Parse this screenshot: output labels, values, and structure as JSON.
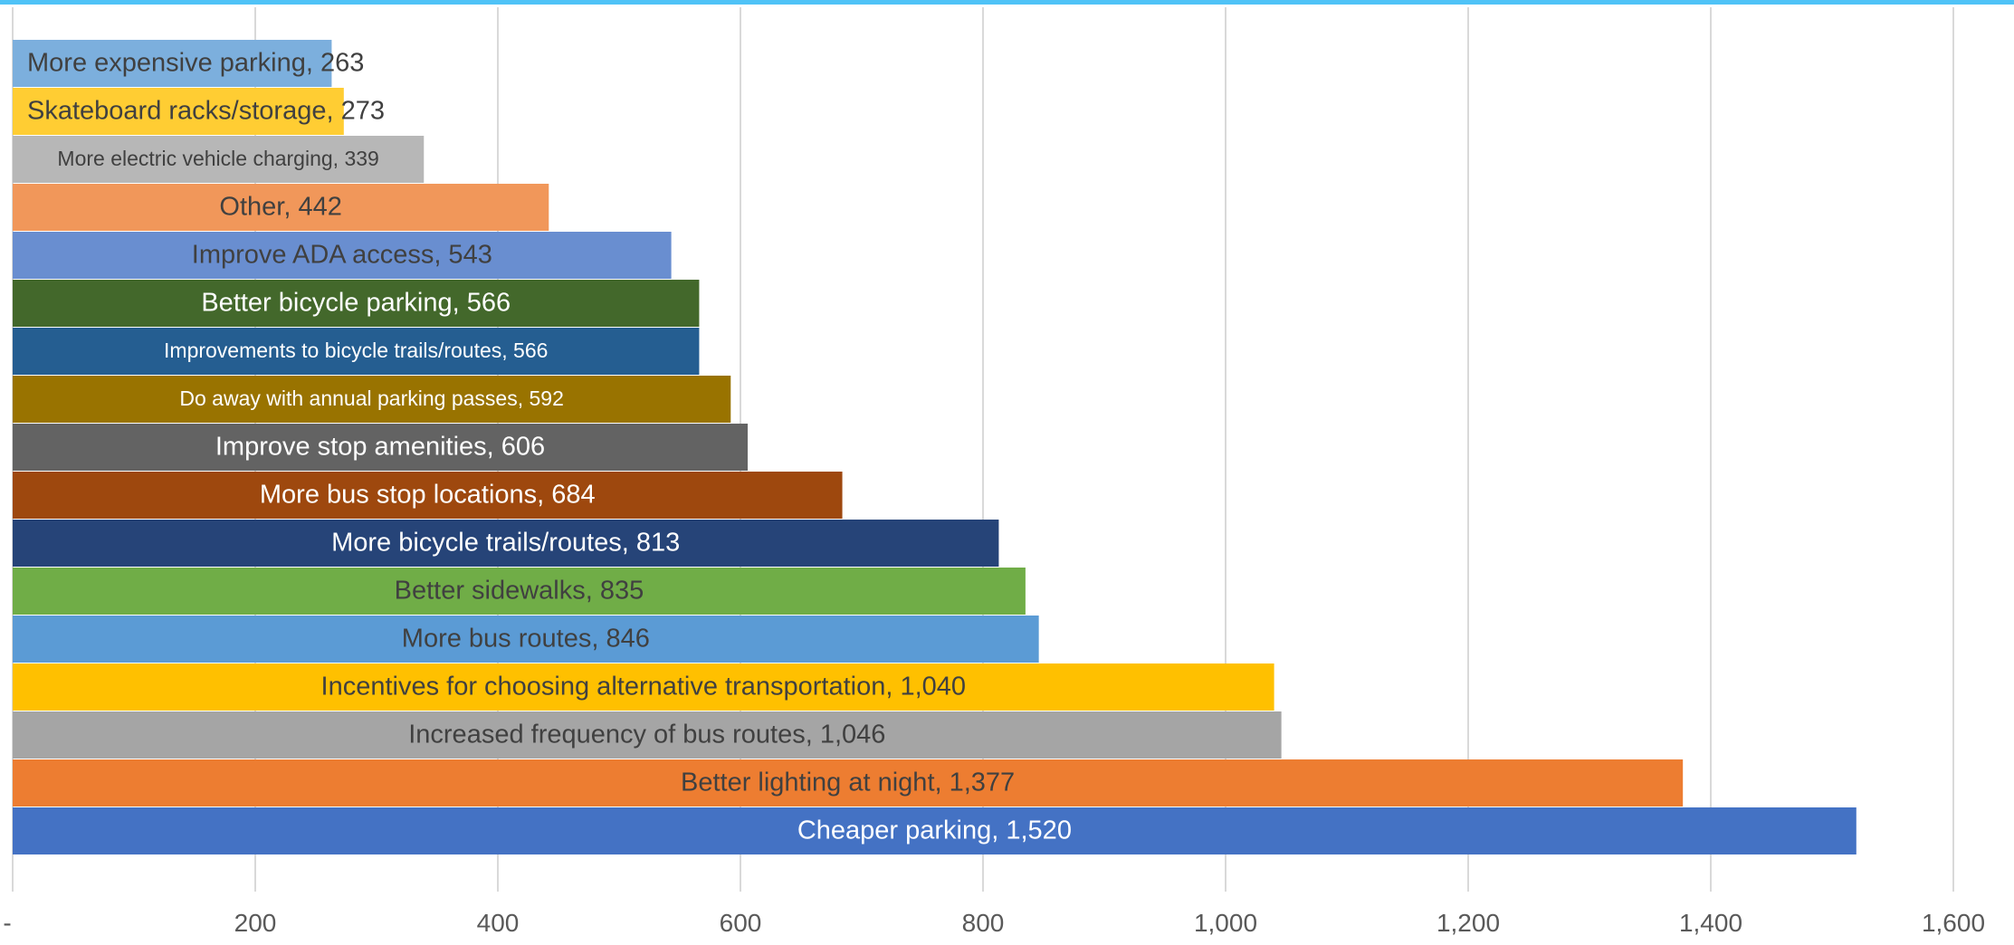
{
  "chart_data": {
    "type": "bar",
    "orientation": "horizontal",
    "categories": [
      "Cheaper parking",
      "Better lighting at night",
      "Increased frequency of bus routes",
      "Incentives for choosing alternative transportation",
      "More bus routes",
      "Better sidewalks",
      "More bicycle trails/routes",
      "More bus stop locations",
      "Improve stop amenities",
      "Do away with annual parking passes",
      "Improvements to bicycle trails/routes",
      "Better bicycle parking",
      "Improve ADA access",
      "Other",
      "More electric vehicle charging",
      "Skateboard racks/storage",
      "More expensive parking"
    ],
    "values": [
      1520,
      1377,
      1046,
      1040,
      846,
      835,
      813,
      684,
      606,
      592,
      566,
      566,
      543,
      442,
      339,
      273,
      263
    ],
    "data_labels": [
      "1,520",
      "1,377",
      "1,046",
      "1,040",
      "846",
      "835",
      "813",
      "684",
      "606",
      "592",
      "566",
      "566",
      "543",
      "442",
      "339",
      "273",
      "263"
    ],
    "colors": [
      "#4472c4",
      "#ed7d31",
      "#a5a5a5",
      "#ffc000",
      "#5b9bd5",
      "#70ad47",
      "#264478",
      "#9e480e",
      "#636363",
      "#997300",
      "#255e91",
      "#43682b",
      "#698ed0",
      "#f1975a",
      "#b7b7b7",
      "#ffcd33",
      "#7cafdd"
    ],
    "label_colors": [
      "#ffffff",
      "#404040",
      "#404040",
      "#404040",
      "#404040",
      "#404040",
      "#ffffff",
      "#ffffff",
      "#ffffff",
      "#ffffff",
      "#ffffff",
      "#ffffff",
      "#404040",
      "#404040",
      "#404040",
      "#404040",
      "#404040"
    ],
    "label_size": [
      "large",
      "large",
      "large",
      "large",
      "large",
      "large",
      "large",
      "large",
      "large",
      "small",
      "small",
      "large",
      "large",
      "large",
      "small",
      "large",
      "large"
    ],
    "x_ticks": [
      "-",
      "200",
      "400",
      "600",
      "800",
      "1,000",
      "1,200",
      "1,400",
      "1,600"
    ],
    "xlim": [
      0,
      1600
    ],
    "xlabel": "",
    "ylabel": "",
    "title": "",
    "grid": "vertical",
    "legend": "none",
    "accent_color": "#4fc3f7"
  }
}
